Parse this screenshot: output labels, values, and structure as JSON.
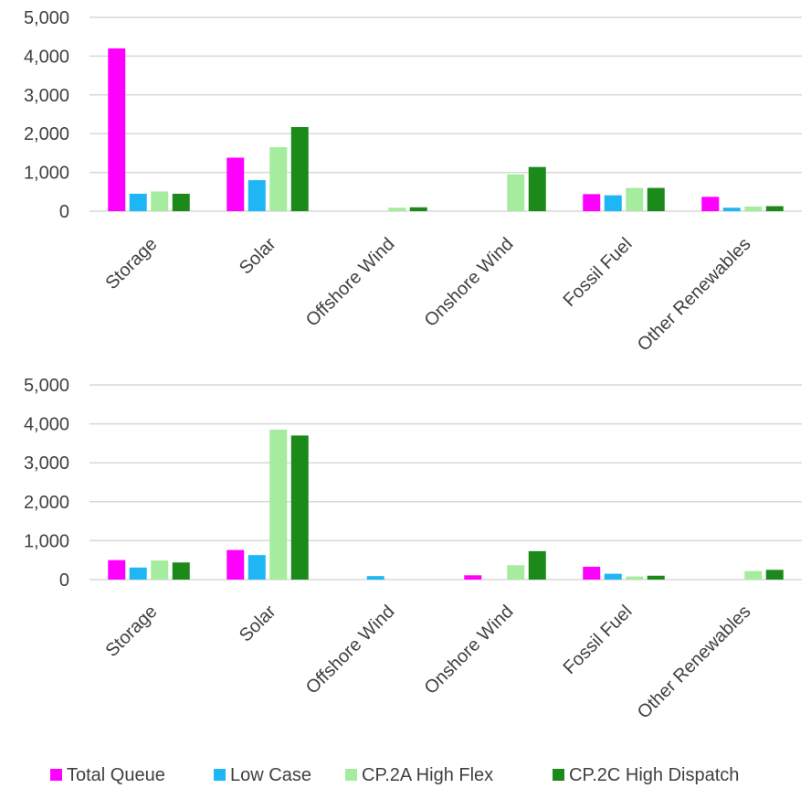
{
  "chart_data": [
    {
      "type": "bar",
      "categories": [
        "Storage",
        "Solar",
        "Offshore Wind",
        "Onshore Wind",
        "Fossil Fuel",
        "Other Renewables"
      ],
      "series": [
        {
          "name": "Total Queue",
          "color": "#ff00ff",
          "values": [
            4200,
            1380,
            0,
            0,
            440,
            370
          ]
        },
        {
          "name": "Low Case",
          "color": "#1fb6f5",
          "values": [
            450,
            800,
            0,
            0,
            410,
            90
          ]
        },
        {
          "name": "CP.2A High Flex",
          "color": "#a6ec9e",
          "values": [
            510,
            1650,
            90,
            950,
            600,
            120
          ]
        },
        {
          "name": "CP.2C High Dispatch",
          "color": "#1b8a1b",
          "values": [
            450,
            2170,
            100,
            1140,
            600,
            130
          ]
        }
      ],
      "ylim": [
        0,
        5000
      ],
      "yticks": [
        "0",
        "1,000",
        "2,000",
        "3,000",
        "4,000",
        "5,000"
      ],
      "grid": true
    },
    {
      "type": "bar",
      "categories": [
        "Storage",
        "Solar",
        "Offshore Wind",
        "Onshore Wind",
        "Fossil Fuel",
        "Other Renewables"
      ],
      "series": [
        {
          "name": "Total Queue",
          "color": "#ff00ff",
          "values": [
            500,
            760,
            0,
            110,
            330,
            0
          ]
        },
        {
          "name": "Low Case",
          "color": "#1fb6f5",
          "values": [
            310,
            630,
            90,
            0,
            150,
            0
          ]
        },
        {
          "name": "CP.2A High Flex",
          "color": "#a6ec9e",
          "values": [
            490,
            3850,
            0,
            370,
            80,
            220
          ]
        },
        {
          "name": "CP.2C High Dispatch",
          "color": "#1b8a1b",
          "values": [
            440,
            3700,
            0,
            730,
            100,
            250
          ]
        }
      ],
      "ylim": [
        0,
        5000
      ],
      "yticks": [
        "0",
        "1,000",
        "2,000",
        "3,000",
        "4,000",
        "5,000"
      ],
      "grid": true
    }
  ],
  "legend": {
    "position": "bottom",
    "items": [
      {
        "label": "Total Queue",
        "color": "#ff00ff"
      },
      {
        "label": "Low Case",
        "color": "#1fb6f5"
      },
      {
        "label": "CP.2A High Flex",
        "color": "#a6ec9e"
      },
      {
        "label": "CP.2C High Dispatch",
        "color": "#1b8a1b"
      }
    ]
  }
}
